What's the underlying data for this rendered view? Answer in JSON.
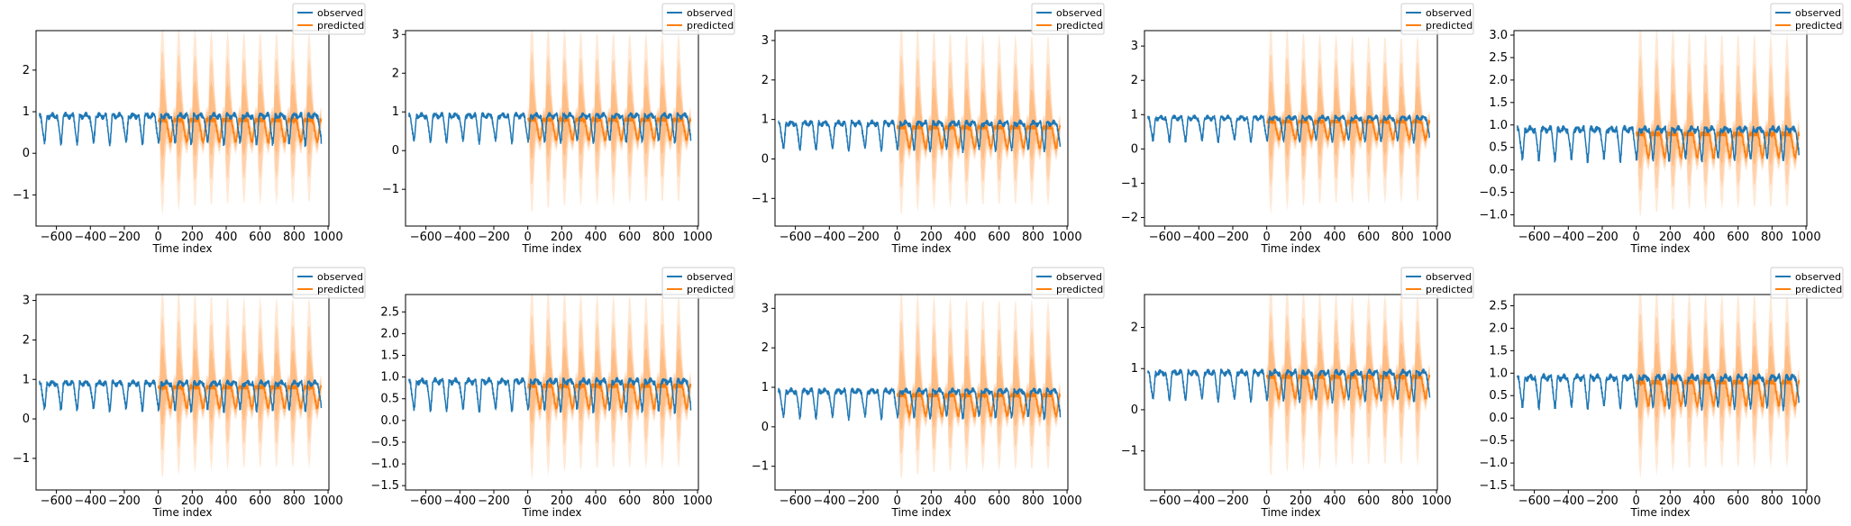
{
  "colors": {
    "observed": "#1f77b4",
    "predicted": "#ff7f0e",
    "band": "#ff7f0e"
  },
  "legend_labels": [
    "observed",
    "predicted"
  ],
  "chart_data": [
    {
      "type": "line",
      "xlabel": "Time index",
      "legend": "top-right",
      "xlim": [
        -720,
        1005
      ],
      "ylim": [
        -1.75,
        2.95
      ],
      "xticks": [
        -600,
        -400,
        -200,
        0,
        200,
        400,
        600,
        800,
        1000
      ],
      "yticks": [
        -1,
        0,
        1,
        2
      ],
      "series": [
        {
          "name": "observed",
          "x_range": [
            -700,
            960
          ],
          "baseline": 0.5,
          "amplitude": 0.3
        },
        {
          "name": "predicted",
          "x_range": [
            0,
            960
          ],
          "baseline": 0.5,
          "amplitude": 0.3
        }
      ]
    },
    {
      "type": "line",
      "xlabel": "Time index",
      "legend": "top-right",
      "xlim": [
        -720,
        1005
      ],
      "ylim": [
        -1.95,
        3.1
      ],
      "xticks": [
        -600,
        -400,
        -200,
        0,
        200,
        400,
        600,
        800,
        1000
      ],
      "yticks": [
        -1,
        0,
        1,
        2,
        3
      ],
      "series": [
        {
          "name": "observed",
          "x_range": [
            -700,
            960
          ],
          "baseline": 0.5,
          "amplitude": 0.3
        },
        {
          "name": "predicted",
          "x_range": [
            0,
            960
          ],
          "baseline": 0.55,
          "amplitude": 0.3
        }
      ]
    },
    {
      "type": "line",
      "xlabel": "Time index",
      "legend": "top-right",
      "xlim": [
        -720,
        1005
      ],
      "ylim": [
        -1.7,
        3.25
      ],
      "xticks": [
        -600,
        -400,
        -200,
        0,
        200,
        400,
        600,
        800,
        1000
      ],
      "yticks": [
        -1,
        0,
        1,
        2,
        3
      ],
      "series": [
        {
          "name": "observed",
          "x_range": [
            -700,
            960
          ],
          "baseline": 0.5,
          "amplitude": 0.3
        },
        {
          "name": "predicted",
          "x_range": [
            0,
            960
          ],
          "baseline": 0.5,
          "amplitude": 0.3
        }
      ]
    },
    {
      "type": "line",
      "xlabel": "Time index",
      "legend": "top-right",
      "xlim": [
        -720,
        1005
      ],
      "ylim": [
        -2.25,
        3.45
      ],
      "xticks": [
        -600,
        -400,
        -200,
        0,
        200,
        400,
        600,
        800,
        1000
      ],
      "yticks": [
        -2,
        -1,
        0,
        1,
        2,
        3
      ],
      "series": [
        {
          "name": "observed",
          "x_range": [
            -700,
            960
          ],
          "baseline": 0.5,
          "amplitude": 0.3
        },
        {
          "name": "predicted",
          "x_range": [
            0,
            960
          ],
          "baseline": 0.5,
          "amplitude": 0.3
        }
      ]
    },
    {
      "type": "line",
      "xlabel": "Time index",
      "legend": "top-right",
      "xlim": [
        -720,
        1005
      ],
      "ylim": [
        -1.25,
        3.1
      ],
      "xticks": [
        -600,
        -400,
        -200,
        0,
        200,
        400,
        600,
        800,
        1000
      ],
      "yticks": [
        -1.0,
        -0.5,
        0.0,
        0.5,
        1.0,
        1.5,
        2.0,
        2.5,
        3.0
      ],
      "series": [
        {
          "name": "observed",
          "x_range": [
            -700,
            960
          ],
          "baseline": 0.5,
          "amplitude": 0.3
        },
        {
          "name": "predicted",
          "x_range": [
            0,
            960
          ],
          "baseline": 0.5,
          "amplitude": 0.3
        }
      ]
    },
    {
      "type": "line",
      "xlabel": "Time index",
      "legend": "top-right",
      "xlim": [
        -720,
        1005
      ],
      "ylim": [
        -1.8,
        3.15
      ],
      "xticks": [
        -600,
        -400,
        -200,
        0,
        200,
        400,
        600,
        800,
        1000
      ],
      "yticks": [
        -1,
        0,
        1,
        2,
        3
      ],
      "series": [
        {
          "name": "observed",
          "x_range": [
            -700,
            960
          ],
          "baseline": 0.5,
          "amplitude": 0.3
        },
        {
          "name": "predicted",
          "x_range": [
            0,
            960
          ],
          "baseline": 0.5,
          "amplitude": 0.3
        }
      ]
    },
    {
      "type": "line",
      "xlabel": "Time index",
      "legend": "top-right",
      "xlim": [
        -720,
        1005
      ],
      "ylim": [
        -1.6,
        2.9
      ],
      "xticks": [
        -600,
        -400,
        -200,
        0,
        200,
        400,
        600,
        800,
        1000
      ],
      "yticks": [
        -1.5,
        -1.0,
        -0.5,
        0.0,
        0.5,
        1.0,
        1.5,
        2.0,
        2.5
      ],
      "series": [
        {
          "name": "observed",
          "x_range": [
            -700,
            960
          ],
          "baseline": 0.5,
          "amplitude": 0.3
        },
        {
          "name": "predicted",
          "x_range": [
            0,
            960
          ],
          "baseline": 0.5,
          "amplitude": 0.3
        }
      ]
    },
    {
      "type": "line",
      "xlabel": "Time index",
      "legend": "top-right",
      "xlim": [
        -720,
        1005
      ],
      "ylim": [
        -1.6,
        3.35
      ],
      "xticks": [
        -600,
        -400,
        -200,
        0,
        200,
        400,
        600,
        800,
        1000
      ],
      "yticks": [
        -1,
        0,
        1,
        2,
        3
      ],
      "series": [
        {
          "name": "observed",
          "x_range": [
            -700,
            960
          ],
          "baseline": 0.5,
          "amplitude": 0.3
        },
        {
          "name": "predicted",
          "x_range": [
            0,
            960
          ],
          "baseline": 0.5,
          "amplitude": 0.3
        }
      ]
    },
    {
      "type": "line",
      "xlabel": "Time index",
      "legend": "top-right",
      "xlim": [
        -720,
        1005
      ],
      "ylim": [
        -1.95,
        2.8
      ],
      "xticks": [
        -600,
        -400,
        -200,
        0,
        200,
        400,
        600,
        800,
        1000
      ],
      "yticks": [
        -1,
        0,
        1,
        2
      ],
      "series": [
        {
          "name": "observed",
          "x_range": [
            -700,
            960
          ],
          "baseline": 0.5,
          "amplitude": 0.3
        },
        {
          "name": "predicted",
          "x_range": [
            0,
            960
          ],
          "baseline": 0.5,
          "amplitude": 0.3
        }
      ]
    },
    {
      "type": "line",
      "xlabel": "Time index",
      "legend": "top-right",
      "xlim": [
        -720,
        1005
      ],
      "ylim": [
        -1.6,
        2.75
      ],
      "xticks": [
        -600,
        -400,
        -200,
        0,
        200,
        400,
        600,
        800,
        1000
      ],
      "yticks": [
        -1.5,
        -1.0,
        -0.5,
        0.0,
        0.5,
        1.0,
        1.5,
        2.0,
        2.5
      ],
      "series": [
        {
          "name": "observed",
          "x_range": [
            -700,
            960
          ],
          "baseline": 0.5,
          "amplitude": 0.3
        },
        {
          "name": "predicted",
          "x_range": [
            0,
            960
          ],
          "baseline": 0.5,
          "amplitude": 0.3
        }
      ]
    }
  ]
}
